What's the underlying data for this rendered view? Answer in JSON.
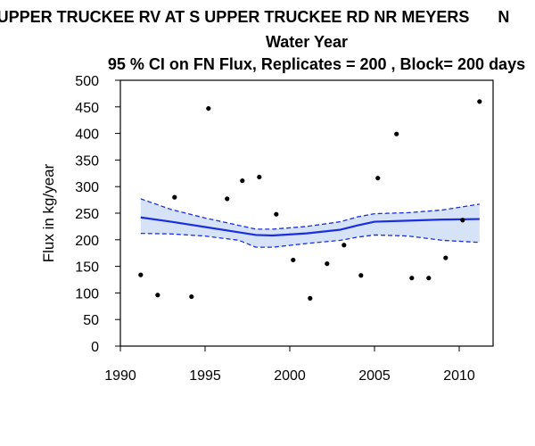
{
  "chart_data": {
    "type": "line",
    "title": "UPPER TRUCKEE RV AT S UPPER TRUCKEE RD NR MEYERS",
    "title_trailing": "N",
    "subtitle": "Water Year",
    "subtitle2": "95 % CI on FN Flux, Replicates = 200 , Block= 200 days",
    "xlabel": "",
    "ylabel": "Flux in kg/year",
    "xlim": [
      1990,
      2012
    ],
    "ylim": [
      0,
      500
    ],
    "x_ticks": [
      1990,
      1995,
      2000,
      2005,
      2010
    ],
    "y_ticks": [
      0,
      50,
      100,
      150,
      200,
      250,
      300,
      350,
      400,
      450,
      500
    ],
    "grid": false,
    "colors": {
      "line": "#1a2ee0",
      "band": "#d6e3f6",
      "points": "#000000"
    },
    "series": [
      {
        "kind": "points",
        "x": [
          1991.2,
          1992.2,
          1993.2,
          1994.2,
          1995.2,
          1996.3,
          1997.2,
          1998.2,
          1999.2,
          2000.2,
          2001.2,
          2002.2,
          2003.2,
          2004.2,
          2005.2,
          2006.3,
          2007.2,
          2008.2,
          2009.2,
          2010.2,
          2011.2
        ],
        "y": [
          134,
          96,
          280,
          93,
          447,
          277,
          311,
          318,
          248,
          162,
          90,
          155,
          190,
          133,
          316,
          399,
          128,
          128,
          166,
          237,
          460
        ]
      },
      {
        "kind": "line",
        "x": [
          1991.2,
          1993,
          1995,
          1997,
          1998,
          1999,
          2001,
          2003,
          2004,
          2005,
          2007,
          2009,
          2011.2
        ],
        "y": [
          242,
          234,
          224,
          214,
          209,
          208,
          212,
          219,
          227,
          234,
          236,
          238,
          239
        ]
      },
      {
        "kind": "ci_upper",
        "x": [
          1991.2,
          1993,
          1995,
          1997,
          1998,
          1999,
          2001,
          2003,
          2004,
          2005,
          2007,
          2009,
          2011.2
        ],
        "y": [
          277,
          257,
          241,
          227,
          220,
          220,
          225,
          234,
          243,
          249,
          251,
          256,
          267
        ]
      },
      {
        "kind": "ci_lower",
        "x": [
          1991.2,
          1993,
          1995,
          1997,
          1998,
          1999,
          2001,
          2003,
          2004,
          2005,
          2007,
          2009,
          2011.2
        ],
        "y": [
          212,
          211,
          207,
          199,
          186,
          186,
          193,
          199,
          205,
          209,
          207,
          199,
          195
        ]
      }
    ]
  }
}
